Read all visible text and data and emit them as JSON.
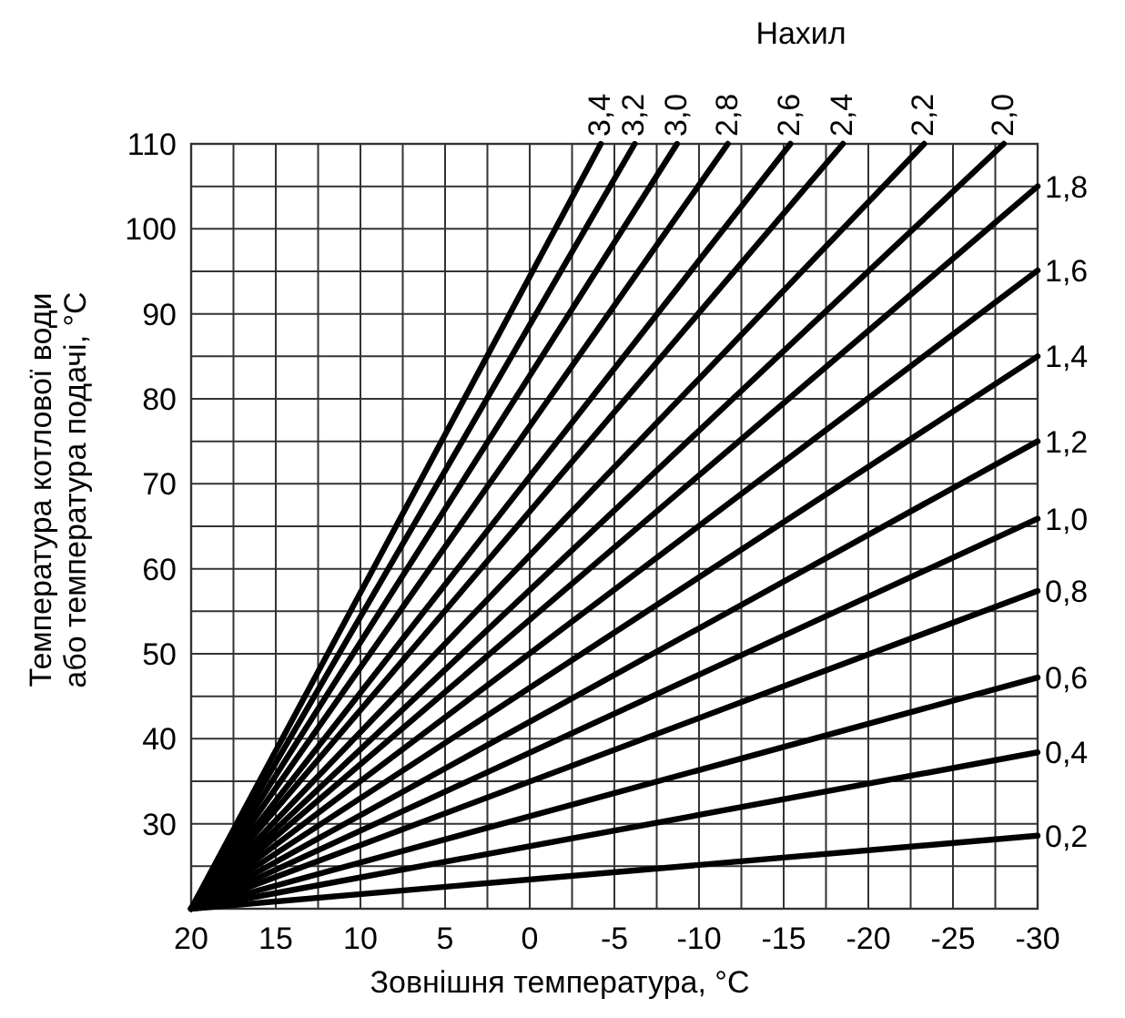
{
  "chart_data": {
    "type": "line",
    "legend_title": "Нахил",
    "xlabel": "Зовнішня температура, °C",
    "ylabel": "Температура котлової води або температура подачі, °C",
    "xlim": [
      20,
      -30
    ],
    "ylim": [
      20,
      110
    ],
    "xticks": [
      20,
      {
        "value": 17.5,
        "label": null
      },
      15,
      {
        "value": 12.5,
        "label": null
      },
      10,
      {
        "value": 7.5,
        "label": null
      },
      5,
      {
        "value": 2.5,
        "label": null
      },
      0,
      {
        "value": -2.5,
        "label": null
      },
      -5,
      {
        "value": -7.5,
        "label": null
      },
      -10,
      {
        "value": -12.5,
        "label": null
      },
      -15,
      {
        "value": -17.5,
        "label": null
      },
      -20,
      {
        "value": -22.5,
        "label": null
      },
      -25,
      {
        "value": -27.5,
        "label": null
      },
      -30
    ],
    "yticks": [
      {
        "value": 25,
        "label": null
      },
      30,
      {
        "value": 35,
        "label": null
      },
      40,
      {
        "value": 45,
        "label": null
      },
      50,
      {
        "value": 55,
        "label": null
      },
      60,
      {
        "value": 65,
        "label": null
      },
      70,
      {
        "value": 75,
        "label": null
      },
      80,
      {
        "value": 85,
        "label": null
      },
      90,
      {
        "value": 95,
        "label": null
      },
      100,
      {
        "value": 105,
        "label": null
      },
      110
    ],
    "grid": true,
    "line_style": "solid",
    "marker": "none",
    "series": [
      {
        "name": "3,4",
        "color": "#000000",
        "x": [
          20,
          -4.2
        ],
        "values": [
          20,
          110
        ]
      },
      {
        "name": "3,2",
        "color": "#000000",
        "x": [
          20,
          -6.2
        ],
        "values": [
          20,
          110
        ]
      },
      {
        "name": "3,0",
        "color": "#000000",
        "x": [
          20,
          -8.7
        ],
        "values": [
          20,
          110
        ]
      },
      {
        "name": "2,8",
        "color": "#000000",
        "x": [
          20,
          -11.7
        ],
        "values": [
          20,
          110
        ]
      },
      {
        "name": "2,6",
        "color": "#000000",
        "x": [
          20,
          -15.4
        ],
        "values": [
          20,
          110
        ]
      },
      {
        "name": "2,4",
        "color": "#000000",
        "x": [
          20,
          -18.5
        ],
        "values": [
          20,
          110
        ]
      },
      {
        "name": "2,2",
        "color": "#000000",
        "x": [
          20,
          -23.3
        ],
        "values": [
          20,
          110
        ]
      },
      {
        "name": "2,0",
        "color": "#000000",
        "x": [
          20,
          -28
        ],
        "values": [
          20,
          110
        ]
      },
      {
        "name": "1,8",
        "color": "#000000",
        "x": [
          20,
          -30
        ],
        "values": [
          20,
          105
        ]
      },
      {
        "name": "1,6",
        "color": "#000000",
        "x": [
          20,
          -30
        ],
        "values": [
          20,
          95.1
        ]
      },
      {
        "name": "1,4",
        "color": "#000000",
        "x": [
          20,
          -30
        ],
        "values": [
          20,
          85
        ]
      },
      {
        "name": "1,2",
        "color": "#000000",
        "x": [
          20,
          -30
        ],
        "values": [
          20,
          75
        ]
      },
      {
        "name": "1,0",
        "color": "#000000",
        "x": [
          20,
          -30
        ],
        "values": [
          20,
          65.9
        ]
      },
      {
        "name": "0,8",
        "color": "#000000",
        "x": [
          20,
          -30
        ],
        "values": [
          20,
          57.4
        ]
      },
      {
        "name": "0,6",
        "color": "#000000",
        "x": [
          20,
          -30
        ],
        "values": [
          20,
          47.2
        ]
      },
      {
        "name": "0,4",
        "color": "#000000",
        "x": [
          20,
          -30
        ],
        "values": [
          20,
          38.4
        ]
      },
      {
        "name": "0,2",
        "color": "#000000",
        "x": [
          20,
          -30
        ],
        "values": [
          20,
          28.6
        ]
      }
    ]
  }
}
